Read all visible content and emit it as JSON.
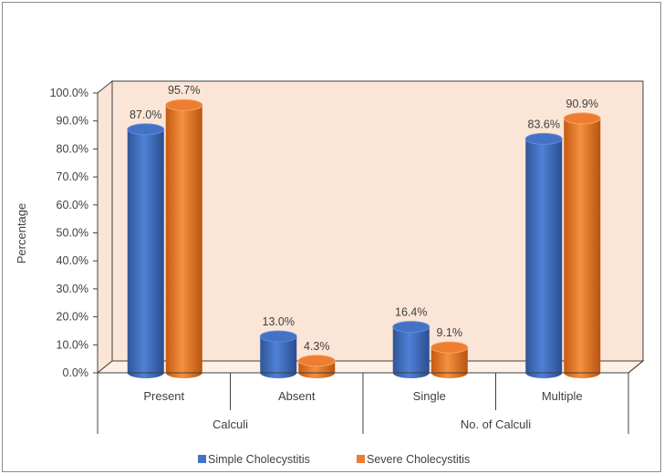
{
  "chart_data": {
    "type": "bar",
    "title": "",
    "ylabel": "Percentage",
    "ylim": [
      0,
      100
    ],
    "yticks": [
      "0.0%",
      "10.0%",
      "20.0%",
      "30.0%",
      "40.0%",
      "50.0%",
      "60.0%",
      "70.0%",
      "80.0%",
      "90.0%",
      "100.0%"
    ],
    "categories": [
      "Present",
      "Absent",
      "Single",
      "Multiple"
    ],
    "groups": [
      {
        "label": "Calculi",
        "categories": [
          "Present",
          "Absent"
        ]
      },
      {
        "label": "No. of Calculi",
        "categories": [
          "Single",
          "Multiple"
        ]
      }
    ],
    "series": [
      {
        "name": "Simple Cholecystitis",
        "color": "#4472C4",
        "values": [
          87.0,
          13.0,
          16.4,
          83.6
        ],
        "labels": [
          "87.0%",
          "13.0%",
          "16.4%",
          "83.6%"
        ]
      },
      {
        "name": "Severe Cholecystitis",
        "color": "#ED7D31",
        "values": [
          95.7,
          4.3,
          9.1,
          90.9
        ],
        "labels": [
          "95.7%",
          "4.3%",
          "9.1%",
          "90.9%"
        ]
      }
    ],
    "legend_position": "bottom",
    "grid": false,
    "wall_color": "#FBE5D6"
  }
}
